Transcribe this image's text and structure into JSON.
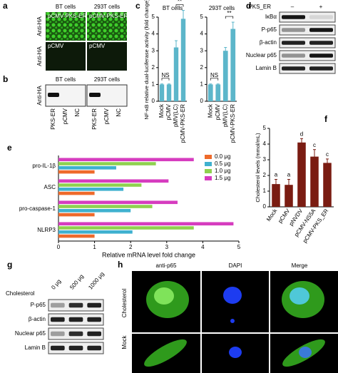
{
  "labels": [
    "a",
    "b",
    "c",
    "d",
    "e",
    "f",
    "g",
    "h"
  ],
  "panel_a": {
    "columns": [
      "BT cells",
      "293T cells"
    ],
    "row_label": "Anti-HA",
    "top": "pCMV-PKS-ER",
    "bottom": "pCMV"
  },
  "panel_b": {
    "columns": [
      "BT cells",
      "293T cells"
    ],
    "row_label": "Anti-HA",
    "lanes": [
      "PKS-ER",
      "pCMV",
      "NC"
    ]
  },
  "panel_d": {
    "header": "PKS_ER",
    "lanes": [
      "–",
      "+"
    ],
    "rows": [
      "IκBα",
      "P-p65",
      "β-actin",
      "Nuclear p65",
      "Lamin B"
    ]
  },
  "panel_g": {
    "header": "Cholesterol",
    "lanes": [
      "0 μg",
      "500 μg",
      "1000 μg"
    ],
    "rows": [
      "P-p65",
      "β-actin",
      "Nuclear p65",
      "Lamin B"
    ]
  },
  "panel_h": {
    "columns": [
      "anti-p65",
      "DAPI",
      "Merge"
    ],
    "rows": [
      "Cholesterol",
      "Mock"
    ]
  },
  "chart_data": [
    {
      "type": "bar",
      "title": "BT cells",
      "ylabel": "NF-κB relative dual-luciferase activity (fold change)",
      "categories": [
        "Mock",
        "pCMV",
        "pMV(LC)",
        "pCMV-PKS-ER"
      ],
      "values": [
        1,
        1,
        3.2,
        4.9
      ],
      "errors": [
        0.03,
        0.03,
        0.4,
        0.5
      ],
      "color": "#5cb6ca",
      "ylim": [
        0,
        5
      ],
      "yticks": [
        0,
        1,
        2,
        3,
        4,
        5
      ],
      "annotations": [
        "NS",
        "**"
      ]
    },
    {
      "type": "bar",
      "title": "293T cells",
      "categories": [
        "Mock",
        "pCMV",
        "pMV(LC)",
        "pCMV-PKS-ER"
      ],
      "values": [
        1,
        1,
        3,
        4.3
      ],
      "errors": [
        0.03,
        0.03,
        0.2,
        0.4
      ],
      "color": "#5cb6ca",
      "ylim": [
        0,
        5
      ],
      "yticks": [
        0,
        1,
        2,
        3,
        4,
        5
      ],
      "annotations": [
        "NS",
        "**"
      ]
    },
    {
      "type": "barh",
      "xlabel": "Relative mRNA level fold change",
      "categories": [
        "pro-IL-1β",
        "ASC",
        "pro-caspase-1",
        "NLRP3"
      ],
      "series": [
        {
          "name": "0.0 μg",
          "color": "#ee6a2b",
          "values": [
            1,
            1,
            1,
            1
          ]
        },
        {
          "name": "0.5 μg",
          "color": "#3fb1cf",
          "values": [
            1.6,
            1.8,
            2,
            2.05
          ]
        },
        {
          "name": "1.0 μg",
          "color": "#8fd14f",
          "values": [
            2.7,
            2.3,
            2.6,
            3.75
          ]
        },
        {
          "name": "1.5 μg",
          "color": "#d63cbf",
          "values": [
            3.75,
            3.05,
            3.3,
            4.85
          ]
        }
      ],
      "xlim": [
        0,
        5
      ],
      "xticks": [
        0,
        1,
        2,
        3,
        4,
        5
      ],
      "legend": "upper right"
    },
    {
      "type": "bar",
      "ylabel": "Cholesterol levels (mmol/mL)",
      "categories": [
        "Mock",
        "pCMV",
        "pNVDV",
        "pCMV-NS5A",
        "pCMV-PKS_ER"
      ],
      "values": [
        1.45,
        1.4,
        4.1,
        3.2,
        2.8
      ],
      "errors": [
        0.3,
        0.35,
        0.25,
        0.45,
        0.25
      ],
      "color": "#7a1c12",
      "ylim": [
        0,
        5
      ],
      "yticks": [
        0,
        1,
        2,
        3,
        4,
        5
      ],
      "significance": [
        "a",
        "a",
        "d",
        "c",
        "c"
      ]
    }
  ]
}
